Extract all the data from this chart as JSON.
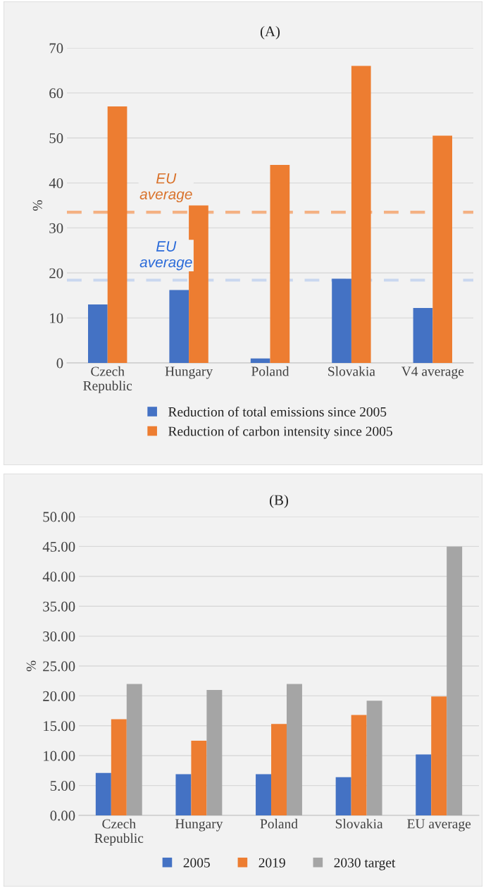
{
  "chart_data": [
    {
      "type": "bar",
      "title": "(A)",
      "ylabel": "%",
      "categories": [
        "Czech\nRepublic",
        "Hungary",
        "Poland",
        "Slovakia",
        "V4 average"
      ],
      "series": [
        {
          "name": "Reduction of total emissions since 2005",
          "color": "#4472c4",
          "values": [
            13,
            16.2,
            1,
            18.7,
            12.2
          ]
        },
        {
          "name": "Reduction of carbon intensity since 2005",
          "color": "#ed7d31",
          "values": [
            57,
            35,
            44,
            66,
            50.5
          ]
        }
      ],
      "ylim": [
        0,
        70
      ],
      "yticks": [
        0,
        10,
        20,
        30,
        40,
        50,
        60,
        70
      ],
      "grid": "y",
      "legend": "bottom",
      "ref_lines": [
        {
          "axis": "y",
          "value": 33.5,
          "label": "EU\naverage",
          "color": "#f4b183",
          "line_style": "dashed"
        },
        {
          "axis": "y",
          "value": 18.4,
          "label": "EU\naverage",
          "color": "#c9d7ef",
          "line_style": "dashed"
        }
      ]
    },
    {
      "type": "bar",
      "title": "(B)",
      "ylabel": "%",
      "categories": [
        "Czech\nRepublic",
        "Hungary",
        "Poland",
        "Slovakia",
        "EU average"
      ],
      "series": [
        {
          "name": "2005",
          "color": "#4472c4",
          "values": [
            7.1,
            6.9,
            6.9,
            6.4,
            10.2
          ]
        },
        {
          "name": "2019",
          "color": "#ed7d31",
          "values": [
            16.1,
            12.5,
            15.3,
            16.8,
            19.9
          ]
        },
        {
          "name": "2030 target",
          "color": "#a5a5a5",
          "values": [
            22,
            21,
            22,
            19.2,
            45
          ]
        }
      ],
      "ylim": [
        0,
        50
      ],
      "yticks": [
        {
          "value": 0,
          "label": "0.00"
        },
        {
          "value": 5,
          "label": "5.00"
        },
        {
          "value": 10,
          "label": "10.00"
        },
        {
          "value": 15,
          "label": "15.00"
        },
        {
          "value": 20,
          "label": "20.00"
        },
        {
          "value": 25,
          "label": "25.00"
        },
        {
          "value": 30,
          "label": "30.00"
        },
        {
          "value": 35,
          "label": "35.00"
        },
        {
          "value": 40,
          "label": "40.00"
        },
        {
          "value": 45,
          "label": "45.00"
        },
        {
          "value": 50,
          "label": "50.00"
        }
      ],
      "grid": "y",
      "legend": "bottom"
    }
  ]
}
